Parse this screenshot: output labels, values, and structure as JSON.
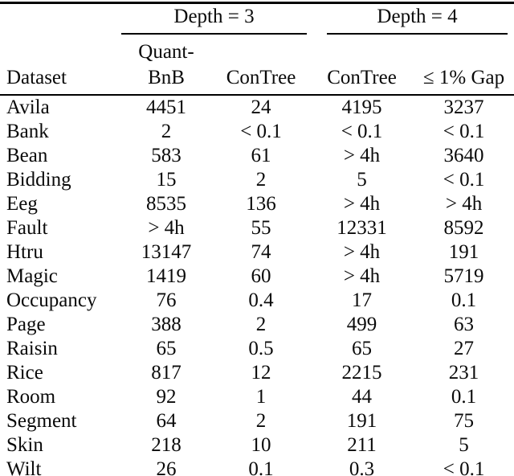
{
  "table": {
    "group_headers": [
      {
        "label": "Depth = 3",
        "spans_columns": [
          "Quant-BnB",
          "ConTree"
        ]
      },
      {
        "label": "Depth = 4",
        "spans_columns": [
          "ConTree",
          "≤ 1% Gap"
        ]
      }
    ],
    "col_headers": [
      "Dataset",
      "Quant-BnB",
      "ConTree",
      "ConTree",
      "≤ 1% Gap"
    ],
    "rows": [
      [
        "Avila",
        "4451",
        "24",
        "4195",
        "3237"
      ],
      [
        "Bank",
        "2",
        "< 0.1",
        "< 0.1",
        "< 0.1"
      ],
      [
        "Bean",
        "583",
        "61",
        "> 4h",
        "3640"
      ],
      [
        "Bidding",
        "15",
        "2",
        "5",
        "< 0.1"
      ],
      [
        "Eeg",
        "8535",
        "136",
        "> 4h",
        "> 4h"
      ],
      [
        "Fault",
        "> 4h",
        "55",
        "12331",
        "8592"
      ],
      [
        "Htru",
        "13147",
        "74",
        "> 4h",
        "191"
      ],
      [
        "Magic",
        "1419",
        "60",
        "> 4h",
        "5719"
      ],
      [
        "Occupancy",
        "76",
        "0.4",
        "17",
        "0.1"
      ],
      [
        "Page",
        "388",
        "2",
        "499",
        "63"
      ],
      [
        "Raisin",
        "65",
        "0.5",
        "65",
        "27"
      ],
      [
        "Rice",
        "817",
        "12",
        "2215",
        "231"
      ],
      [
        "Room",
        "92",
        "1",
        "44",
        "0.1"
      ],
      [
        "Segment",
        "64",
        "2",
        "191",
        "75"
      ],
      [
        "Skin",
        "218",
        "10",
        "211",
        "5"
      ],
      [
        "Wilt",
        "26",
        "0.1",
        "0.3",
        "< 0.1"
      ]
    ]
  },
  "colors": {
    "text": "#0a0a0a",
    "rule": "#000000",
    "background": "#ffffff"
  }
}
